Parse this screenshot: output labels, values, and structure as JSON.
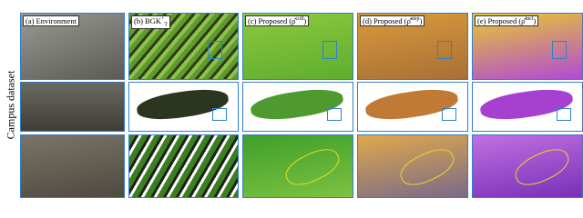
{
  "side_label": "Campus dataset",
  "panels": [
    {
      "parts": [
        {
          "t": "(a) Environment"
        }
      ]
    },
    {
      "parts": [
        {
          "t": "(b) BGK"
        },
        {
          "t": "+",
          "pos": "sup"
        },
        {
          "t": "T",
          "pos": "sub"
        }
      ]
    },
    {
      "parts": [
        {
          "t": "(c) Proposed ("
        },
        {
          "t": "ρ̂"
        },
        {
          "t": "coll",
          "pos": "sup"
        },
        {
          "t": ")"
        }
      ]
    },
    {
      "parts": [
        {
          "t": "(d) Proposed ("
        },
        {
          "t": "ρ̂"
        },
        {
          "t": "step",
          "pos": "sup"
        },
        {
          "t": ")"
        }
      ]
    },
    {
      "parts": [
        {
          "t": "(e) Proposed ("
        },
        {
          "t": "ρ̂"
        },
        {
          "t": "incl",
          "pos": "sup"
        },
        {
          "t": ")"
        }
      ]
    }
  ]
}
